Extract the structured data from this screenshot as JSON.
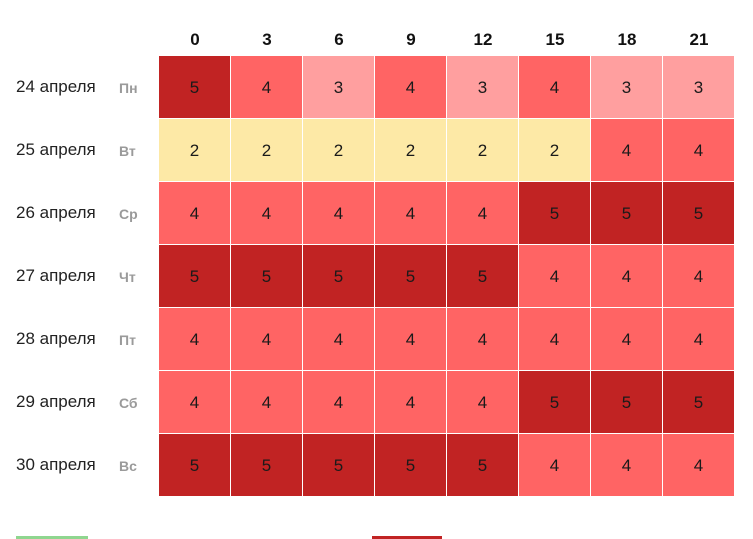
{
  "hours": [
    "0",
    "3",
    "6",
    "9",
    "12",
    "15",
    "18",
    "21"
  ],
  "rows": [
    {
      "date": "24 апреля",
      "day": "Пн",
      "values": [
        5,
        4,
        3,
        4,
        3,
        4,
        3,
        3
      ]
    },
    {
      "date": "25 апреля",
      "day": "Вт",
      "values": [
        2,
        2,
        2,
        2,
        2,
        2,
        4,
        4
      ]
    },
    {
      "date": "26 апреля",
      "day": "Ср",
      "values": [
        4,
        4,
        4,
        4,
        4,
        5,
        5,
        5
      ]
    },
    {
      "date": "27 апреля",
      "day": "Чт",
      "values": [
        5,
        5,
        5,
        5,
        5,
        4,
        4,
        4
      ]
    },
    {
      "date": "28 апреля",
      "day": "Пт",
      "values": [
        4,
        4,
        4,
        4,
        4,
        4,
        4,
        4
      ]
    },
    {
      "date": "29 апреля",
      "day": "Сб",
      "values": [
        4,
        4,
        4,
        4,
        4,
        5,
        5,
        5
      ]
    },
    {
      "date": "30 апреля",
      "day": "Вс",
      "values": [
        5,
        5,
        5,
        5,
        5,
        4,
        4,
        4
      ]
    }
  ],
  "level_colors": {
    "2": "#fde9a6",
    "3": "#ff9f9f",
    "4": "#ff6464",
    "5": "#c12323"
  },
  "legend_colors": [
    "#8fd68f",
    "#c12323"
  ]
}
